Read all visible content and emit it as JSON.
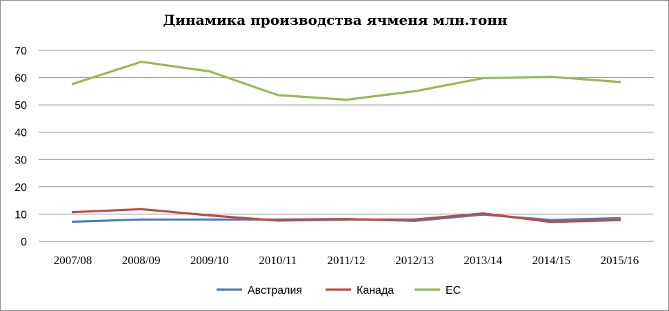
{
  "chart_data": {
    "type": "line",
    "title": "Динамика производства ячменя млн.тонн",
    "categories": [
      "2007/08",
      "2008/09",
      "2009/10",
      "2010/11",
      "2011/12",
      "2012/13",
      "2013/14",
      "2014/15",
      "2015/16"
    ],
    "ylim": [
      0,
      70
    ],
    "yticks": [
      0,
      10,
      20,
      30,
      40,
      50,
      60,
      70
    ],
    "grid": true,
    "legend": "bottom",
    "series": [
      {
        "name": "Австралия",
        "color": "#4a7ebb",
        "values": [
          7.2,
          8.0,
          8.0,
          8.0,
          8.2,
          7.5,
          9.8,
          7.8,
          8.5
        ]
      },
      {
        "name": "Канада",
        "color": "#be4b48",
        "values": [
          10.7,
          11.8,
          9.5,
          7.6,
          8.0,
          8.0,
          10.2,
          7.1,
          7.8
        ]
      },
      {
        "name": "ЕС",
        "color": "#98b954",
        "values": [
          57.7,
          65.8,
          62.3,
          53.6,
          51.9,
          55.0,
          59.8,
          60.3,
          58.4
        ]
      }
    ]
  }
}
